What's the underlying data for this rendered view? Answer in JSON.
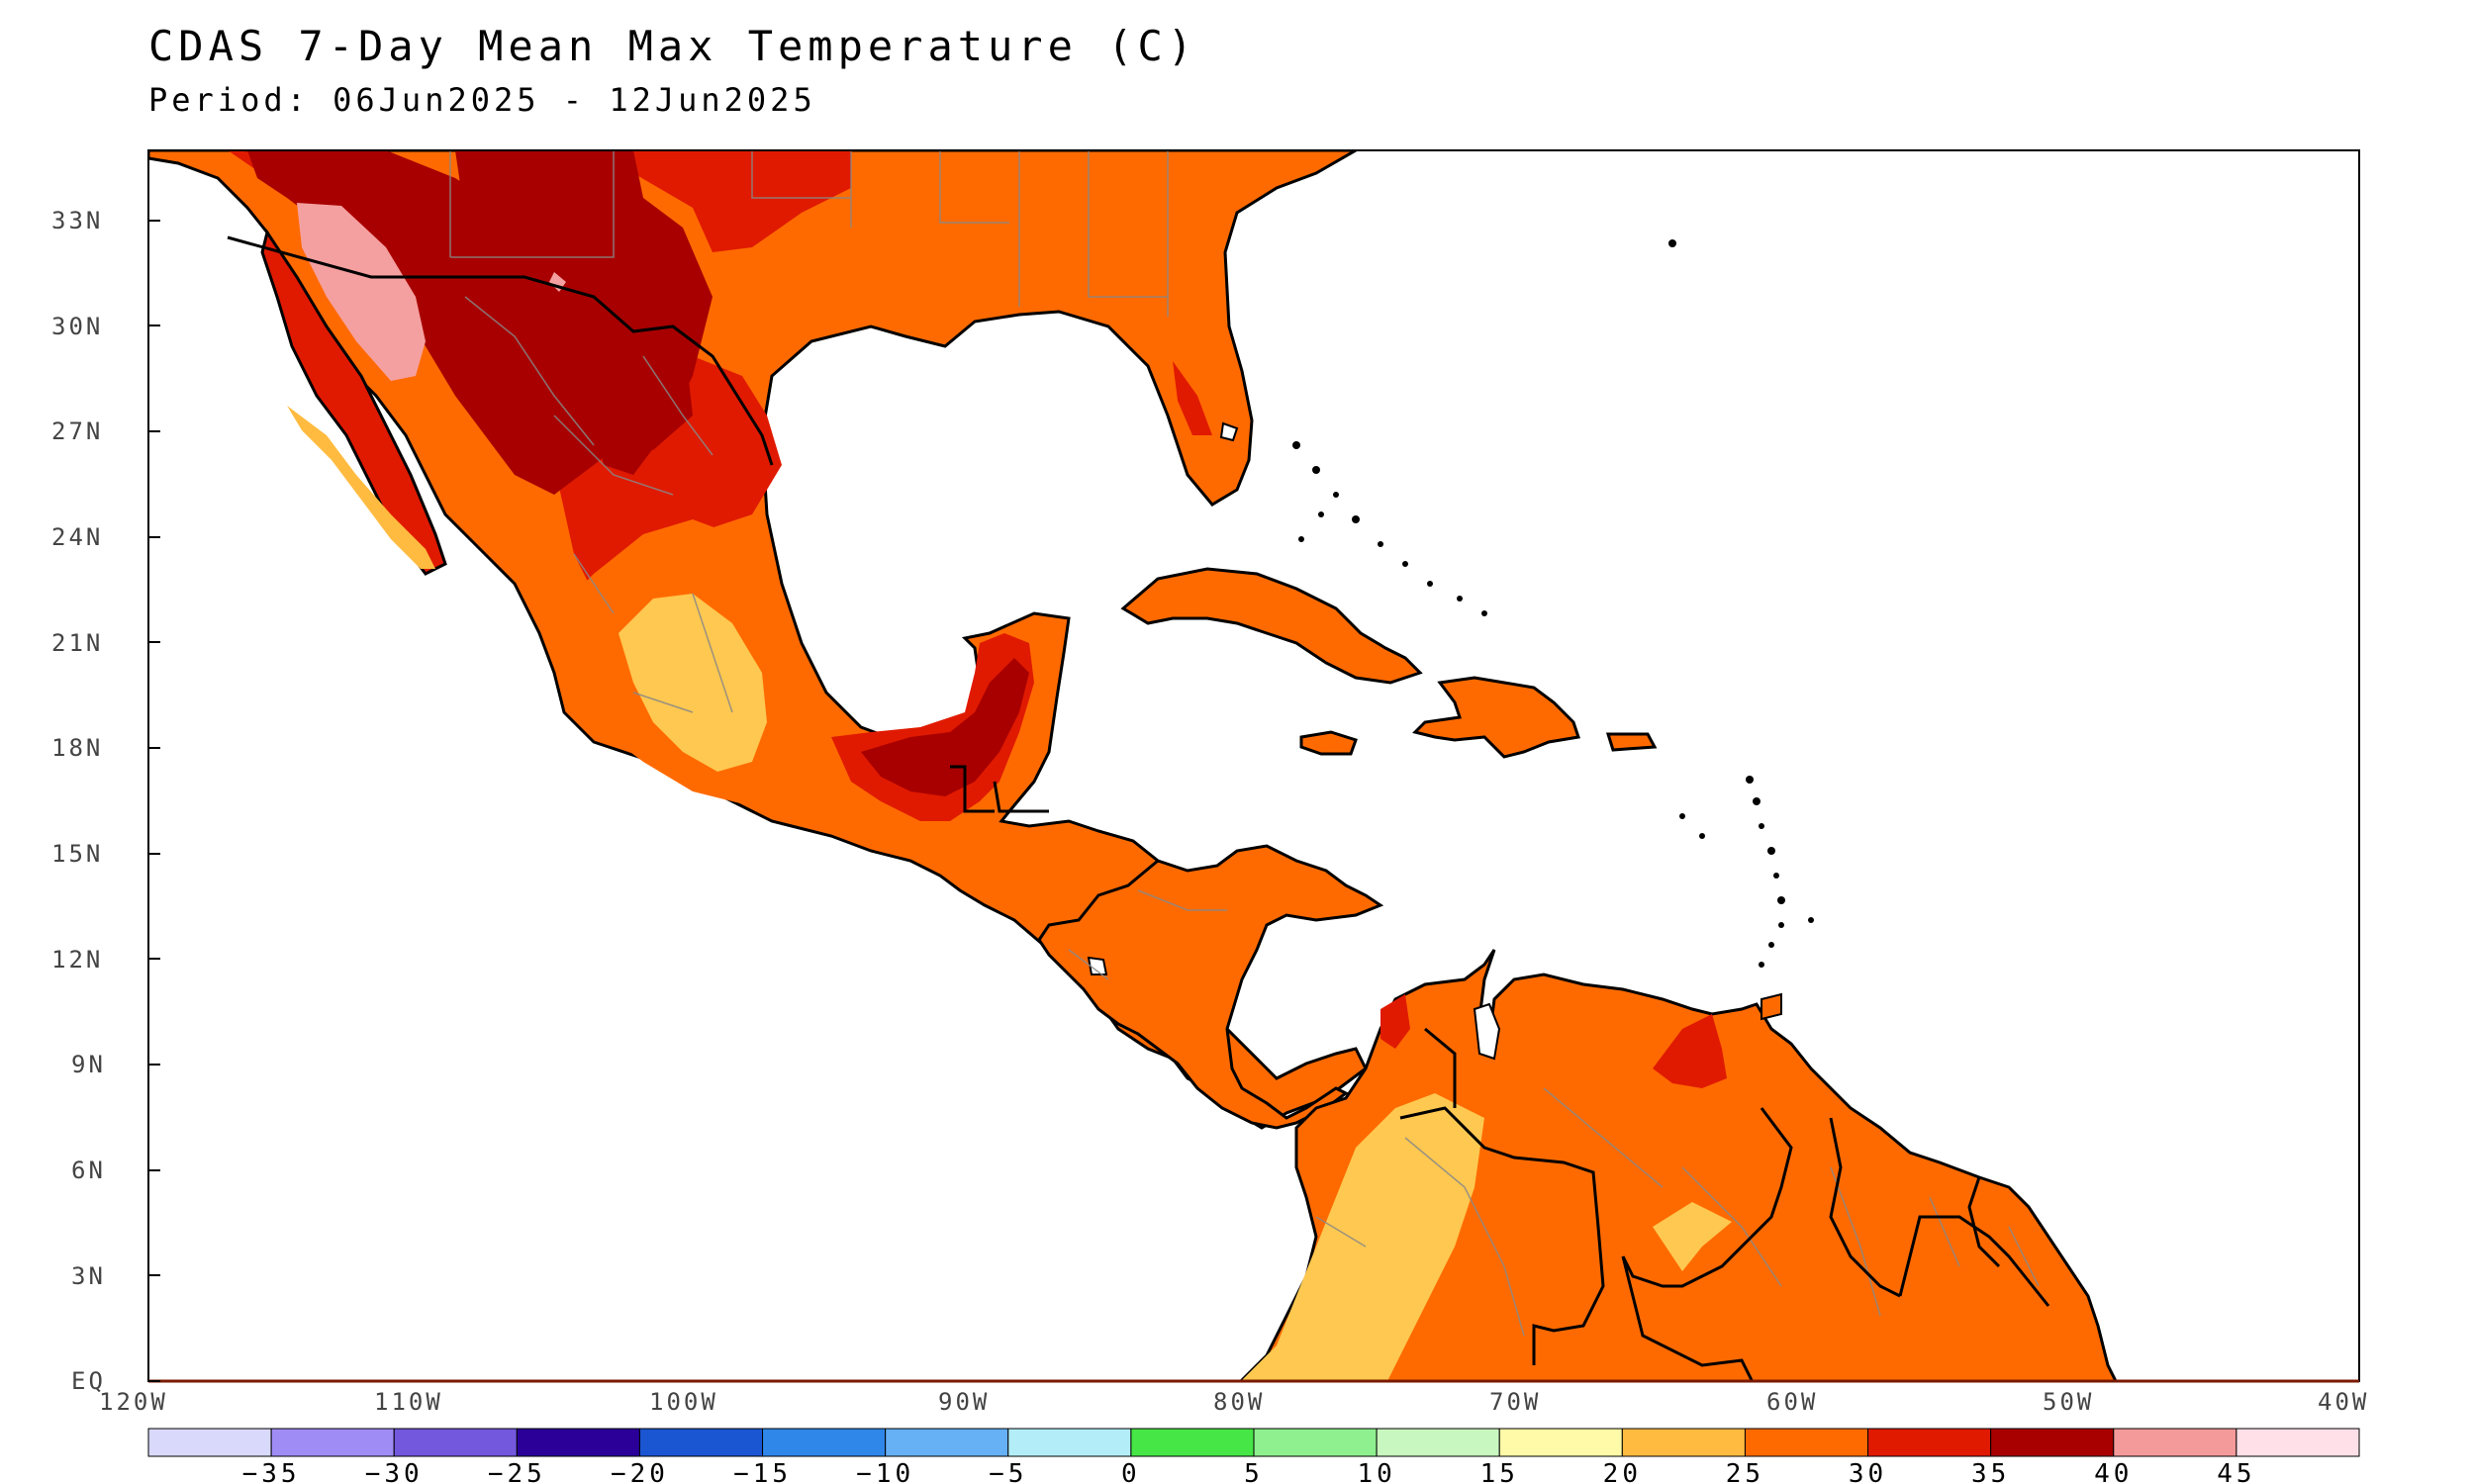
{
  "header": {
    "title": "CDAS 7-Day Mean Max Temperature (C)",
    "period": "Period: 06Jun2025 - 12Jun2025"
  },
  "map": {
    "region_note": "",
    "lon_ticks": [
      "120W",
      "110W",
      "100W",
      "90W",
      "80W",
      "70W",
      "60W",
      "50W",
      "40W"
    ],
    "lat_ticks": [
      "EQ",
      "3N",
      "6N",
      "9N",
      "12N",
      "15N",
      "18N",
      "21N",
      "24N",
      "27N",
      "30N",
      "33N"
    ],
    "lon_range": [
      -120,
      -40
    ],
    "lat_range": [
      0,
      35
    ]
  },
  "colorbar": {
    "labels": [
      "-35",
      "-30",
      "-25",
      "-20",
      "-15",
      "-10",
      "-5",
      "0",
      "5",
      "10",
      "15",
      "20",
      "25",
      "30",
      "35",
      "40",
      "45"
    ],
    "colors": [
      "#d9d9fb",
      "#a08cf5",
      "#7358dd",
      "#2a0099",
      "#1a55d2",
      "#2f87ea",
      "#66b0f5",
      "#b3eef8",
      "#46e646",
      "#8ef08e",
      "#c8f8c0",
      "#fffaa8",
      "#ffbb40",
      "#ff6a00",
      "#e01a00",
      "#a80000",
      "#f59a9a",
      "#ffe0e8"
    ]
  },
  "legend_colors": {
    "t20_25": "#ffc850",
    "t25_30": "#ff6a00",
    "t30_35": "#e01a00",
    "t35_40": "#a80000",
    "t40_45": "#f5a0a0"
  }
}
